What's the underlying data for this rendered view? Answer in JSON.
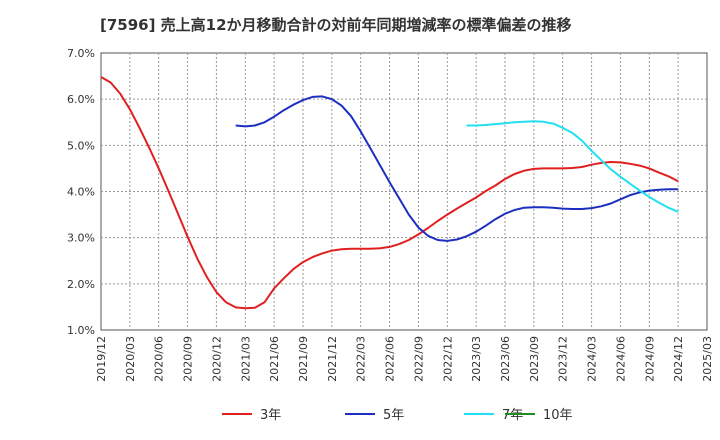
{
  "chart_data": {
    "type": "line",
    "title": "[7596]  売上高12か月移動合計の対前年同期増減率の標準偏差の推移",
    "xlabel": "",
    "ylabel": "",
    "ylim": [
      1.0,
      7.0
    ],
    "yticks": [
      "1.0%",
      "2.0%",
      "3.0%",
      "4.0%",
      "5.0%",
      "6.0%",
      "7.0%"
    ],
    "xticks": [
      "2019/12",
      "2020/03",
      "2020/06",
      "2020/09",
      "2020/12",
      "2021/03",
      "2021/06",
      "2021/09",
      "2021/12",
      "2022/03",
      "2022/06",
      "2022/09",
      "2022/12",
      "2023/03",
      "2023/06",
      "2023/09",
      "2023/12",
      "2024/03",
      "2024/06",
      "2024/09",
      "2024/12",
      "2025/03"
    ],
    "grid": true,
    "legend_position": "bottom",
    "series": [
      {
        "name": "3年",
        "color": "#e02020",
        "points": [
          [
            "2019/12",
            6.48
          ],
          [
            "2020/01",
            6.36
          ],
          [
            "2020/02",
            6.12
          ],
          [
            "2020/03",
            5.78
          ],
          [
            "2020/04",
            5.38
          ],
          [
            "2020/05",
            4.95
          ],
          [
            "2020/06",
            4.5
          ],
          [
            "2020/07",
            4.02
          ],
          [
            "2020/08",
            3.52
          ],
          [
            "2020/09",
            3.02
          ],
          [
            "2020/10",
            2.55
          ],
          [
            "2020/11",
            2.15
          ],
          [
            "2020/12",
            1.82
          ],
          [
            "2021/01",
            1.6
          ],
          [
            "2021/02",
            1.49
          ],
          [
            "2021/03",
            1.47
          ],
          [
            "2021/04",
            1.48
          ],
          [
            "2021/05",
            1.6
          ],
          [
            "2021/06",
            1.9
          ],
          [
            "2021/07",
            2.12
          ],
          [
            "2021/08",
            2.32
          ],
          [
            "2021/09",
            2.47
          ],
          [
            "2021/10",
            2.58
          ],
          [
            "2021/11",
            2.66
          ],
          [
            "2021/12",
            2.72
          ],
          [
            "2022/01",
            2.75
          ],
          [
            "2022/02",
            2.76
          ],
          [
            "2022/03",
            2.76
          ],
          [
            "2022/04",
            2.76
          ],
          [
            "2022/05",
            2.77
          ],
          [
            "2022/06",
            2.8
          ],
          [
            "2022/07",
            2.86
          ],
          [
            "2022/08",
            2.95
          ],
          [
            "2022/09",
            3.07
          ],
          [
            "2022/10",
            3.21
          ],
          [
            "2022/11",
            3.36
          ],
          [
            "2022/12",
            3.5
          ],
          [
            "2023/01",
            3.63
          ],
          [
            "2023/02",
            3.75
          ],
          [
            "2023/03",
            3.87
          ],
          [
            "2023/04",
            4.01
          ],
          [
            "2023/05",
            4.13
          ],
          [
            "2023/06",
            4.27
          ],
          [
            "2023/07",
            4.38
          ],
          [
            "2023/08",
            4.45
          ],
          [
            "2023/09",
            4.49
          ],
          [
            "2023/10",
            4.5
          ],
          [
            "2023/11",
            4.5
          ],
          [
            "2023/12",
            4.5
          ],
          [
            "2024/01",
            4.51
          ],
          [
            "2024/02",
            4.53
          ],
          [
            "2024/03",
            4.58
          ],
          [
            "2024/04",
            4.62
          ],
          [
            "2024/05",
            4.64
          ],
          [
            "2024/06",
            4.63
          ],
          [
            "2024/07",
            4.6
          ],
          [
            "2024/08",
            4.56
          ],
          [
            "2024/09",
            4.5
          ],
          [
            "2024/10",
            4.41
          ],
          [
            "2024/11",
            4.33
          ],
          [
            "2024/12",
            4.22
          ]
        ]
      },
      {
        "name": "5年",
        "color": "#1c2fc0",
        "points": [
          [
            "2021/02",
            5.43
          ],
          [
            "2021/03",
            5.41
          ],
          [
            "2021/04",
            5.43
          ],
          [
            "2021/05",
            5.5
          ],
          [
            "2021/06",
            5.62
          ],
          [
            "2021/07",
            5.76
          ],
          [
            "2021/08",
            5.88
          ],
          [
            "2021/09",
            5.98
          ],
          [
            "2021/10",
            6.05
          ],
          [
            "2021/11",
            6.06
          ],
          [
            "2021/12",
            6.0
          ],
          [
            "2022/01",
            5.86
          ],
          [
            "2022/02",
            5.63
          ],
          [
            "2022/03",
            5.3
          ],
          [
            "2022/04",
            4.94
          ],
          [
            "2022/05",
            4.57
          ],
          [
            "2022/06",
            4.2
          ],
          [
            "2022/07",
            3.85
          ],
          [
            "2022/08",
            3.5
          ],
          [
            "2022/09",
            3.22
          ],
          [
            "2022/10",
            3.04
          ],
          [
            "2022/11",
            2.95
          ],
          [
            "2022/12",
            2.93
          ],
          [
            "2023/01",
            2.96
          ],
          [
            "2023/02",
            3.03
          ],
          [
            "2023/03",
            3.13
          ],
          [
            "2023/04",
            3.26
          ],
          [
            "2023/05",
            3.4
          ],
          [
            "2023/06",
            3.52
          ],
          [
            "2023/07",
            3.6
          ],
          [
            "2023/08",
            3.65
          ],
          [
            "2023/09",
            3.66
          ],
          [
            "2023/10",
            3.66
          ],
          [
            "2023/11",
            3.65
          ],
          [
            "2023/12",
            3.63
          ],
          [
            "2024/01",
            3.62
          ],
          [
            "2024/02",
            3.62
          ],
          [
            "2024/03",
            3.64
          ],
          [
            "2024/04",
            3.68
          ],
          [
            "2024/05",
            3.74
          ],
          [
            "2024/06",
            3.83
          ],
          [
            "2024/07",
            3.92
          ],
          [
            "2024/08",
            3.98
          ],
          [
            "2024/09",
            4.02
          ],
          [
            "2024/10",
            4.04
          ],
          [
            "2024/11",
            4.05
          ],
          [
            "2024/12",
            4.05
          ]
        ]
      },
      {
        "name": "7年",
        "color": "#22e0f0",
        "points": [
          [
            "2023/02",
            5.43
          ],
          [
            "2023/03",
            5.43
          ],
          [
            "2023/04",
            5.44
          ],
          [
            "2023/05",
            5.46
          ],
          [
            "2023/06",
            5.48
          ],
          [
            "2023/07",
            5.5
          ],
          [
            "2023/08",
            5.51
          ],
          [
            "2023/09",
            5.52
          ],
          [
            "2023/10",
            5.51
          ],
          [
            "2023/11",
            5.47
          ],
          [
            "2023/12",
            5.38
          ],
          [
            "2024/01",
            5.27
          ],
          [
            "2024/02",
            5.1
          ],
          [
            "2024/03",
            4.88
          ],
          [
            "2024/04",
            4.68
          ],
          [
            "2024/05",
            4.48
          ],
          [
            "2024/06",
            4.32
          ],
          [
            "2024/07",
            4.17
          ],
          [
            "2024/08",
            4.02
          ],
          [
            "2024/09",
            3.88
          ],
          [
            "2024/10",
            3.76
          ],
          [
            "2024/11",
            3.65
          ],
          [
            "2024/12",
            3.56
          ]
        ]
      },
      {
        "name": "10年",
        "color": "#228b22",
        "points": []
      }
    ]
  }
}
